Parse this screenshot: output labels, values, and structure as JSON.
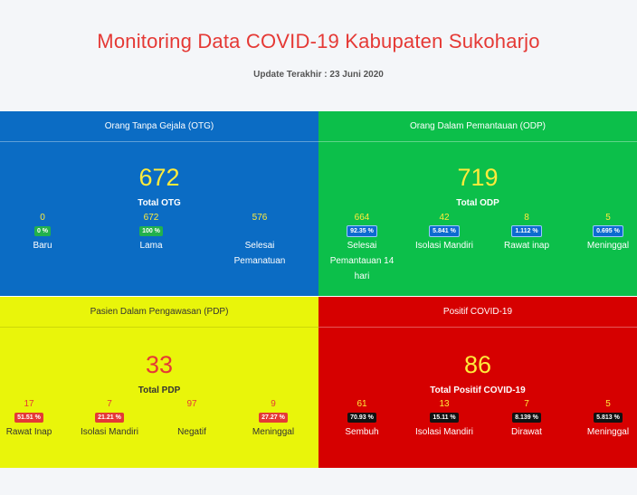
{
  "header": {
    "title": "Monitoring Data COVID-19 Kabupaten Sukoharjo",
    "subtitle": "Update Terakhir : 23 Juni 2020"
  },
  "otg": {
    "heading": "Orang Tanpa Gejala (OTG)",
    "total": "672",
    "total_label": "Total OTG",
    "stats": [
      {
        "value": "0",
        "badge": "0 %",
        "label": "Baru"
      },
      {
        "value": "672",
        "badge": "100 %",
        "label": "Lama"
      },
      {
        "value": "576",
        "badge": "",
        "label": "Selesai Pemanatuan"
      }
    ]
  },
  "odp": {
    "heading": "Orang Dalam Pemantauan (ODP)",
    "total": "719",
    "total_label": "Total ODP",
    "stats": [
      {
        "value": "664",
        "badge": "92.35 %",
        "label": "Selesai Pemantauan 14 hari"
      },
      {
        "value": "42",
        "badge": "5.841 %",
        "label": "Isolasi Mandiri"
      },
      {
        "value": "8",
        "badge": "1.112 %",
        "label": "Rawat inap"
      },
      {
        "value": "5",
        "badge": "0.695 %",
        "label": "Meninggal"
      }
    ]
  },
  "pdp": {
    "heading": "Pasien Dalam Pengawasan (PDP)",
    "total": "33",
    "total_label": "Total PDP",
    "stats": [
      {
        "value": "17",
        "badge": "51.51 %",
        "label": "Rawat Inap"
      },
      {
        "value": "7",
        "badge": "21.21 %",
        "label": "Isolasi Mandiri"
      },
      {
        "value": "97",
        "badge": "",
        "label": "Negatif"
      },
      {
        "value": "9",
        "badge": "27.27 %",
        "label": "Meninggal"
      }
    ]
  },
  "positif": {
    "heading": "Positif COVID-19",
    "total": "86",
    "total_label": "Total Positif COVID-19",
    "stats": [
      {
        "value": "61",
        "badge": "70.93 %",
        "label": "Sembuh"
      },
      {
        "value": "13",
        "badge": "15.11 %",
        "label": "Isolasi Mandiri"
      },
      {
        "value": "7",
        "badge": "8.139 %",
        "label": "Dirawat"
      },
      {
        "value": "5",
        "badge": "5.813 %",
        "label": "Meninggal"
      }
    ]
  },
  "colors": {
    "title_red": "#e53935",
    "otg_bg": "#0b6cc4",
    "odp_bg": "#0cbf4a",
    "pdp_bg": "#e9f50a",
    "positif_bg": "#d60000",
    "number_yellow": "#ffeb3b"
  }
}
